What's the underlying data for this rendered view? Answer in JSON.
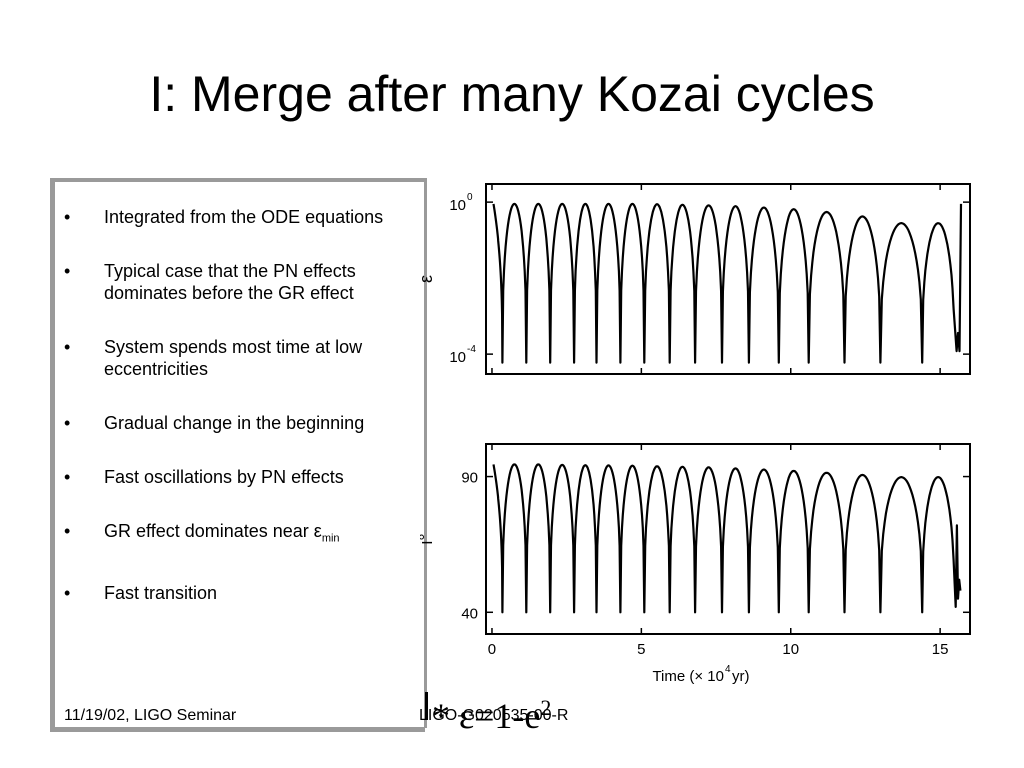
{
  "slide": {
    "title": "I: Merge after many Kozai cycles",
    "bullets": [
      {
        "text": "Integrated from the ODE equations"
      },
      {
        "text": "Typical case that the PN effects dominates before the GR effect"
      },
      {
        "text": "System spends most time at low eccentricities"
      },
      {
        "text": "Gradual change in the beginning"
      },
      {
        "text": "Fast oscillations by PN effects"
      },
      {
        "text": "GR effect dominates near ε",
        "subscript": "min"
      },
      {
        "text": "Fast transition"
      }
    ],
    "bullet_glyph": "•",
    "footer": {
      "date": "11/19/02, LIGO Seminar",
      "doc_id": "LIGO-G020535-00-R"
    },
    "epsilon_def": {
      "text": "* ε=1-e",
      "superscript": "2"
    }
  },
  "chart_data": [
    {
      "type": "line",
      "ylabel": "ε",
      "yscale": "log",
      "ytick_labels": [
        {
          "base": "10",
          "exp": "0"
        },
        {
          "base": "10",
          "exp": "-4"
        }
      ],
      "yticks": [
        1,
        0.0001
      ],
      "ylim": [
        3e-05,
        3
      ],
      "xlim": [
        -0.2,
        16
      ],
      "xticks": [
        0,
        5,
        10,
        15
      ],
      "line_color": "#000000",
      "series": [
        {
          "peaks": [
            0.9,
            0.9,
            0.9,
            0.9,
            0.9,
            0.9,
            0.9,
            0.88,
            0.85,
            0.82,
            0.78,
            0.72,
            0.65,
            0.55,
            0.42,
            0.28
          ],
          "minima_x": [
            0.35,
            1.15,
            1.95,
            2.75,
            3.5,
            4.3,
            5.1,
            5.95,
            6.8,
            7.7,
            8.6,
            9.6,
            10.6,
            11.8,
            13.0,
            14.4
          ],
          "minimum_value": 6e-05,
          "end_x": 15.6,
          "end_min": 0.00012,
          "end_rise": 0.9
        }
      ]
    },
    {
      "type": "line",
      "ylabel": "i°",
      "xlabel": {
        "prefix": "Time (× 10",
        "exp": "4",
        "suffix": " yr)"
      },
      "ylim": [
        32,
        102
      ],
      "yticks": [
        40,
        90
      ],
      "ytick_labels": [
        "40",
        "90"
      ],
      "xlim": [
        -0.2,
        16
      ],
      "xticks": [
        0,
        5,
        10,
        15
      ],
      "xtick_labels": [
        "0",
        "5",
        "10",
        "15"
      ],
      "line_color": "#000000",
      "series": [
        {
          "peaks": [
            94.5,
            94.5,
            94.5,
            94.3,
            94.2,
            94.1,
            94.0,
            93.8,
            93.6,
            93.4,
            93.0,
            92.6,
            92.1,
            91.4,
            90.6,
            89.8
          ],
          "minima_x": [
            0.35,
            1.15,
            1.95,
            2.75,
            3.5,
            4.3,
            5.1,
            5.95,
            6.8,
            7.7,
            8.6,
            9.6,
            10.6,
            11.8,
            13.0,
            14.4
          ],
          "minimum_value": 40,
          "end_x": 15.6,
          "end_min": 42,
          "end_level": 48
        }
      ]
    }
  ]
}
